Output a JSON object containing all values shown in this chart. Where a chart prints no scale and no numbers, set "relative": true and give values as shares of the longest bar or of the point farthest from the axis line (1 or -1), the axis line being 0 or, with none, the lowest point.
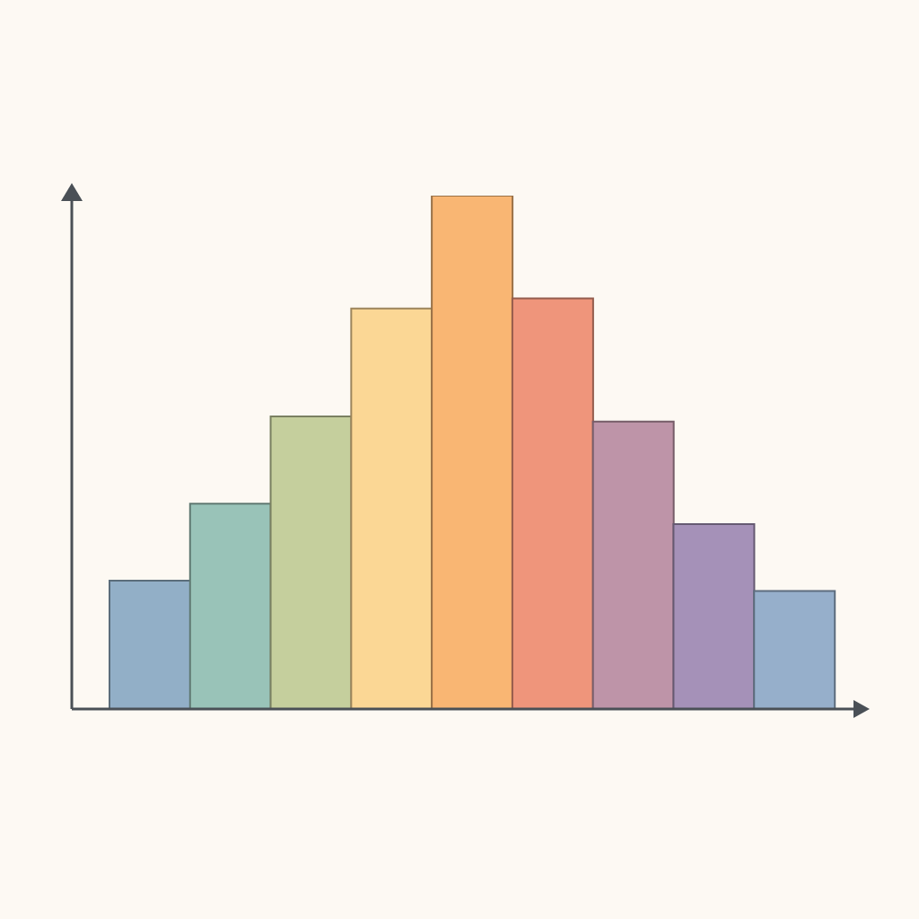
{
  "chart_data": {
    "type": "bar",
    "relative": true,
    "categories": [
      null,
      null,
      null,
      null,
      null,
      null,
      null,
      null,
      null
    ],
    "values": [
      0.25,
      0.4,
      0.57,
      0.78,
      1,
      0.8,
      0.56,
      0.36,
      0.23
    ],
    "colors": [
      "#92afc7",
      "#99c3b8",
      "#c5cf9d",
      "#fbd795",
      "#f9b673",
      "#ef957b",
      "#be94a8",
      "#a591b8",
      "#96afcb"
    ]
  }
}
